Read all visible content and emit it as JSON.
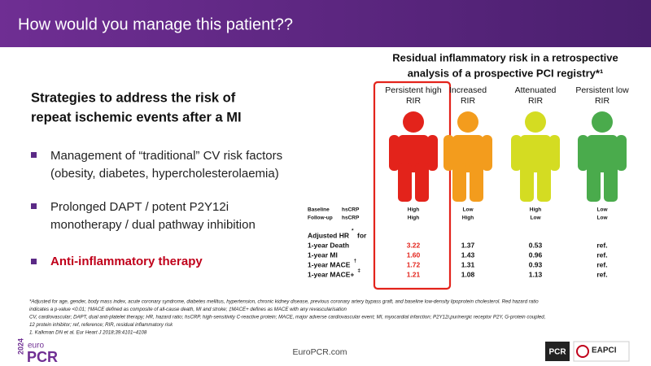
{
  "header": {
    "title": "How would you manage this patient??"
  },
  "left": {
    "heading": [
      "Strategies to address the risk of",
      "repeat ischemic events after a MI"
    ],
    "bullets": [
      [
        "Management of “traditional” CV risk factors",
        "(obesity, diabetes, hypercholesterolaemia)"
      ],
      [
        "Prolonged DAPT / potent P2Y12i",
        "monotherapy / dual pathway inhibition"
      ],
      [
        "Anti-inflammatory therapy"
      ]
    ]
  },
  "panel": {
    "title": [
      "Residual inflammatory risk in a retrospective",
      "analysis of a prospective PCI registry*¹"
    ],
    "row_labels": {
      "baseline": "Baseline",
      "followup": "Follow-up",
      "marker": "hsCRP",
      "adjusted": "Adjusted HR",
      "adjusted_sup": "*",
      "adjusted_for": "for",
      "outcomes": [
        {
          "label": "1-year Death",
          "sup": ""
        },
        {
          "label": "1-year MI",
          "sup": ""
        },
        {
          "label": "1-year MACE",
          "sup": "†"
        },
        {
          "label": "1-year MACE+",
          "sup": "‡"
        }
      ]
    },
    "columns": [
      {
        "label": [
          "Persistent high",
          "RIR"
        ],
        "color": "#e3231b",
        "baseline": "High",
        "followup": "High",
        "hr": [
          "3.22",
          "1.60",
          "1.72",
          "1.21"
        ],
        "hr_color": "#e3231b"
      },
      {
        "label": [
          "Increased",
          "RIR"
        ],
        "color": "#f39c1d",
        "baseline": "Low",
        "followup": "High",
        "hr": [
          "1.37",
          "1.43",
          "1.31",
          "1.08"
        ],
        "hr_color": "#111111"
      },
      {
        "label": [
          "Attenuated",
          "RIR"
        ],
        "color": "#d4dc22",
        "baseline": "High",
        "followup": "Low",
        "hr": [
          "0.53",
          "0.96",
          "0.93",
          "1.13"
        ],
        "hr_color": "#111111"
      },
      {
        "label": [
          "Persistent low",
          "RIR"
        ],
        "color": "#4aab4c",
        "baseline": "Low",
        "followup": "Low",
        "hr": [
          "ref.",
          "ref.",
          "ref.",
          "ref."
        ],
        "hr_color": "#111111"
      }
    ]
  },
  "footnotes": [
    "*Adjusted for age, gender, body mass index, acute coronary syndrome, diabetes mellitus, hypertension, chronic kidney disease, previous coronary artery bypass graft, and baseline low-density lipoprotein cholesterol. Red hazard ratio",
    "indicates a p-value <0.01; †MACE defined as composite of all-cause death, MI and stroke; ‡MACE+ defines as MACE with any revascularisation",
    "CV, cardiovascular; DAPT, dual anti-platelet therapy; HR, hazard ratio; hsCRP, high-sensitivity C-reactive protein; MACE, major adverse cardiovascular event; MI, myocardial infarction; P2Y12i,purinergic receptor P2Y, G-protein coupled,",
    "12 protein inhibitor; ref, reference; RIR, residual inflammatory risk",
    "1. Kalkman DN et al. Eur Heart J 2018;39:4101–4108"
  ],
  "footer": {
    "year": "2024",
    "brand_top": "euro",
    "brand": "PCR",
    "url": "EuroPCR.com",
    "logo1": "PCR",
    "logo2": "EAPCI"
  }
}
